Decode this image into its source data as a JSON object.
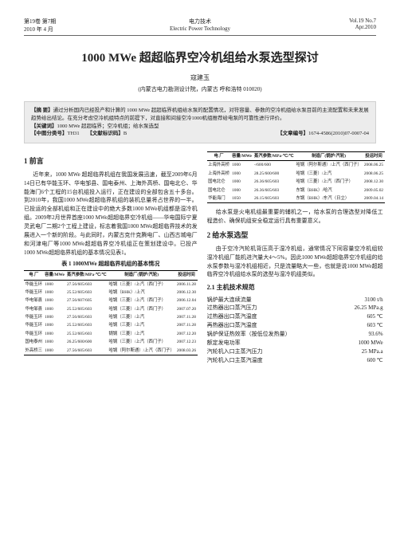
{
  "header": {
    "left1": "第19卷 第7期",
    "left2": "2010 年 4 月",
    "center1": "电力技术",
    "center2": "Electric Power Technology",
    "right1": "Vol.19 No.7",
    "right2": "Apr.2010"
  },
  "title": "1000 MWe 超超临界空冷机组给水泵选型探讨",
  "author": "寇建玉",
  "affil": "(内蒙古电力勘测设计院，内蒙古  呼和浩特  010020)",
  "abstract": {
    "label": "【摘  要】",
    "text": "通过分析国内已经投产和计算的 1000 MWe 超超临界机组给水泵的配置情况，对符容量、参数的空冷机组给水泵目前的主流配置和未来发展趋势给出结论。在充分考虑空冷机组特点的前提下，对直接和间接空冷1000机组推荐给电泵的可靠性进行评价。",
    "kw_label": "【关键词】",
    "kw": "1000 MWe 超超临界；空冷机组；给水泵选型",
    "clc_label": "【中图分类号】",
    "clc": "TH31",
    "doc_label": "【文献标识码】",
    "doc": "B",
    "id_label": "【文章编号】",
    "id": "1674-4586(2010)07-0007-04"
  },
  "sec1": {
    "h": "1  前言",
    "p1": "近年来，1000 MWe 超超临界机组在我国发展迅速，截至2009年6月14日已有华能玉环、华电邹县、国电泰州、上海外高桥、国电北仑、华能海门6个工程的15台机组投入运行，正在建设的全部包含五十多台。到2010年，我国1000 MWe超超临界机组的装机总量将占世界的一半。已投运的全部机组和正在建设中的绝大多数1000 MWe机组都是湿冷机组。2009年2月世界首座1000 MWe超超临界空冷机组——华电国际宁夏灵武电厂二期2个工程上建设，标志着我国1000 MWe超超临界技术的发展进入一个新的阶段。与此同时，内蒙古克什克腾电厂、山西古城电厂和河津电厂等1000 MWe超超临界空冷机组正在策划建设中。已投产1000 MWe超超临界机组的基本情况见表1。",
    "tbl1_cap": "表 1  1000MWe 超超临界机组的基本情况",
    "tbl1": {
      "head": [
        "电 厂",
        "容量/MWe",
        "蒸汽参数/MPa·℃/℃",
        "制造厂(锅炉/汽轮)",
        "投运时间"
      ],
      "rows": [
        [
          "华能玉环",
          "1000",
          "27.56/605/603",
          "哈锅（三菱）/上汽（西门子）",
          "2006.11.28"
        ],
        [
          "华能玉环",
          "1000",
          "25.52/605/603",
          "哈锅（BHK）/上汽",
          "2006.12.30"
        ],
        [
          "华电邹县",
          "1000",
          "27.56/607/605",
          "哈锅（三菱）/上汽（西门子）",
          "2006.12.04"
        ],
        [
          "华电邹县",
          "1000",
          "25.52/605/603",
          "哈锅（三菱）/上汽（西门子）",
          "2007.07.20"
        ],
        [
          "华能玉环",
          "1000",
          "27.56/605/603",
          "哈锅（三菱）/上汽",
          "2007.11.28"
        ],
        [
          "华能玉环",
          "1000",
          "25.52/605/603",
          "哈锅（三菱）/上汽",
          "2007.11.28"
        ],
        [
          "华能玉环",
          "1000",
          "25.52/605/603",
          "锅锅（三菱）/上汽",
          "2007.12.20"
        ],
        [
          "国电泰州",
          "1000",
          "26.25/600/600",
          "哈锅（三菱）/上汽（西门子）",
          "2007.12.23"
        ],
        [
          "外高桥三",
          "1000",
          "27.56/605/603",
          "哈锅（阿尔斯通）/上汽（西门子）",
          "2008.03.26"
        ]
      ]
    }
  },
  "tbl2": {
    "head": [
      "电 厂",
      "容量/MWe",
      "蒸汽参数/MPa·℃/℃",
      "制造厂(锅炉/汽轮)",
      "投运时间"
    ],
    "rows": [
      [
        "上海外高桥",
        "1000",
        "-/600/600",
        "哈锅（阿尔斯通）/上汽（西门子）",
        "2008.06.25"
      ],
      [
        "上海外高桥",
        "1000",
        "28.25/600/600",
        "哈锅（三菱）/上汽",
        "2008.06.25"
      ],
      [
        "国电北仑",
        "1000",
        "26.36/605/603",
        "哈锅（三菱）/上汽（西门子）",
        "2008.12.30"
      ],
      [
        "国电北仑",
        "1000",
        "26.36/605/603",
        "东锅（BHK）/哈汽",
        "2009.05.02"
      ],
      [
        "华能海门",
        "1050",
        "26.15/605/603",
        "东锅（BHK）/东汽（日立）",
        "2009.04.14"
      ]
    ]
  },
  "col2": {
    "p1": "给水泵是火电机组最重要的辅机之一，给水泵的合理选型对降低工程造价、确保机组安全稳定运行具有重要意义。",
    "h2": "2  给水泵选型",
    "p2": "由于空冷汽轮机背压高于湿冷机组，通常情况下同容量空冷机组较湿冷机组厂能机进汽量大4～5%。因此1000 MWe超超临界空冷机组的给水泵参数与湿冷机组相近，只是流量略大一些，也就是说1000 MWe超超临界空冷机组给水泵的选型与湿冷机组类似。",
    "h21": "2.1  主机技术规范",
    "specs": [
      [
        "锅炉最大连续流量",
        "3100 t/h"
      ],
      [
        "过热器出口蒸汽压力",
        "26.25 MPa.g"
      ],
      [
        "过热器出口蒸汽温度",
        "605 ℃"
      ],
      [
        "再热器出口蒸汽温度",
        "603 ℃"
      ],
      [
        "锅炉保证热效率（按低位发热量）",
        "93.6%"
      ],
      [
        "额定发电功率",
        "1000 MWe"
      ],
      [
        "汽轮机入口主蒸汽压力",
        "25 MPa.a"
      ],
      [
        "汽轮机入口主蒸汽温度",
        "600 ℃"
      ]
    ]
  }
}
